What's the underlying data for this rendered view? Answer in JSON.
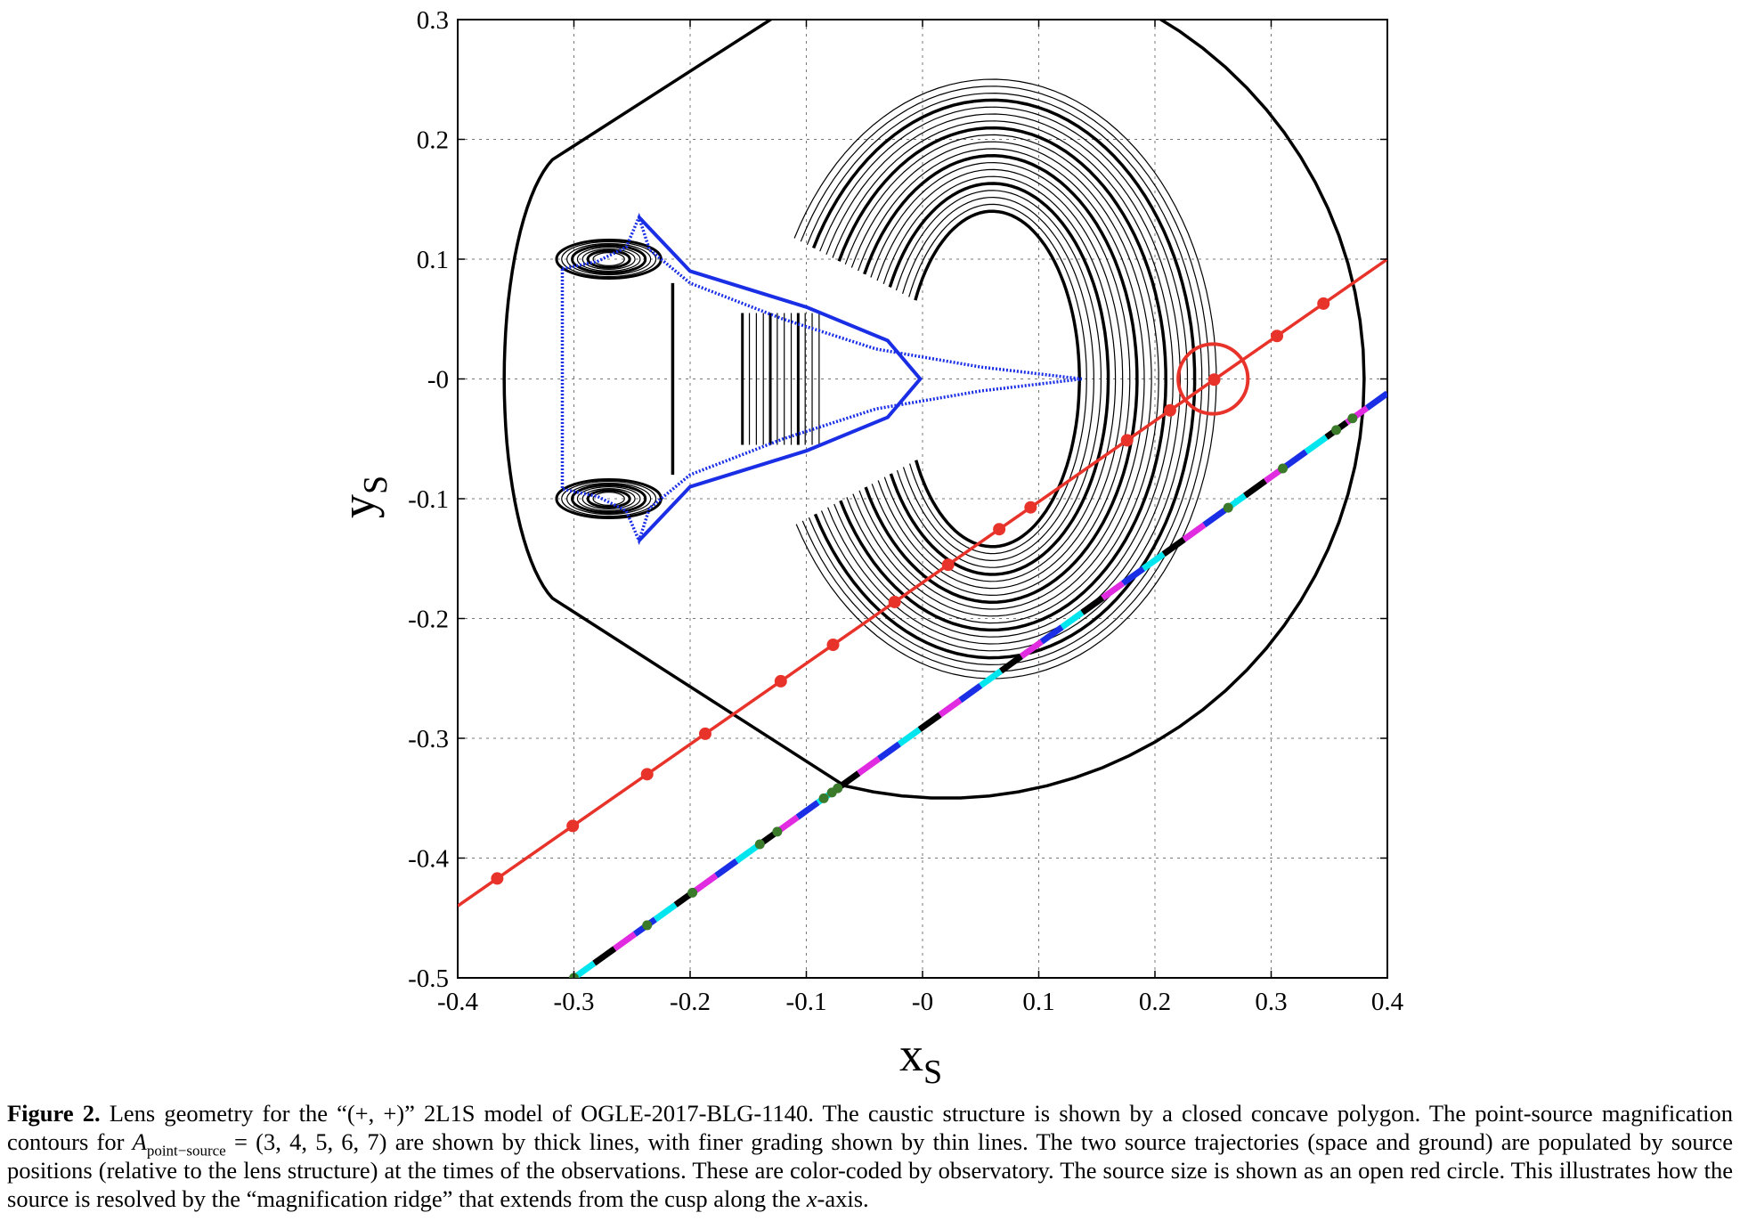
{
  "chart_data": {
    "type": "line",
    "xlabel": "x",
    "xlabel_sub": "S",
    "ylabel": "y",
    "ylabel_sub": "S",
    "xlim": [
      -0.4,
      0.4
    ],
    "ylim": [
      -0.5,
      0.3
    ],
    "grid": true,
    "x_ticks": [
      -0.4,
      -0.3,
      -0.2,
      -0.1,
      0,
      0.1,
      0.2,
      0.3,
      0.4
    ],
    "x_tick_labels": [
      "-0.4",
      "-0.3",
      "-0.2",
      "-0.1",
      "-0",
      "0.1",
      "0.2",
      "0.3",
      "0.4"
    ],
    "y_ticks": [
      0.3,
      0.2,
      0.1,
      0,
      -0.1,
      -0.2,
      -0.3,
      -0.4,
      -0.5
    ],
    "y_tick_labels": [
      "0.3",
      "0.2",
      "0.1",
      "-0",
      "-0.1",
      "-0.2",
      "-0.3",
      "-0.4",
      "-0.5"
    ],
    "caustic": {
      "color": "#1a2ee6",
      "points": [
        [
          -0.31,
          0.092
        ],
        [
          -0.28,
          0.098
        ],
        [
          -0.255,
          0.11
        ],
        [
          -0.244,
          0.135
        ],
        [
          -0.235,
          0.108
        ],
        [
          -0.2,
          0.08
        ],
        [
          -0.12,
          0.05
        ],
        [
          -0.04,
          0.025
        ],
        [
          0.05,
          0.01
        ],
        [
          0.137,
          0
        ],
        [
          0.05,
          -0.01
        ],
        [
          -0.04,
          -0.025
        ],
        [
          -0.12,
          -0.05
        ],
        [
          -0.2,
          -0.08
        ],
        [
          -0.235,
          -0.108
        ],
        [
          -0.244,
          -0.135
        ],
        [
          -0.255,
          -0.11
        ],
        [
          -0.28,
          -0.098
        ],
        [
          -0.31,
          -0.092
        ]
      ],
      "inner_cusp_curve": [
        [
          -0.244,
          0.135
        ],
        [
          -0.2,
          0.09
        ],
        [
          -0.1,
          0.06
        ],
        [
          -0.03,
          0.032
        ],
        [
          -0.002,
          0
        ],
        [
          -0.03,
          -0.032
        ],
        [
          -0.1,
          -0.06
        ],
        [
          -0.2,
          -0.09
        ],
        [
          -0.244,
          -0.135
        ]
      ]
    },
    "trajectory_space": {
      "color": "#e8332a",
      "line": [
        [
          -0.4,
          -0.44
        ],
        [
          0.4,
          0.1
        ]
      ],
      "points_x": [
        -0.366,
        -0.301,
        -0.237,
        -0.187,
        -0.122,
        -0.077,
        -0.024,
        0.022,
        0.066,
        0.093,
        0.176,
        0.213,
        0.251,
        0.305,
        0.345
      ]
    },
    "trajectory_ground": {
      "line": [
        [
          -0.3,
          -0.5
        ],
        [
          0.4,
          -0.012
        ]
      ],
      "colors": [
        "#00e5ee",
        "#1a2ee6",
        "#e02be0",
        "#000000"
      ],
      "points_color": "#3a7a2a",
      "points_x": [
        -0.3,
        -0.237,
        -0.198,
        -0.125,
        -0.14,
        -0.085,
        -0.078,
        -0.073,
        0.263,
        0.31,
        0.356,
        0.37
      ]
    },
    "source_circle": {
      "color": "#e8332a",
      "center": [
        0.25,
        0
      ],
      "radius": 0.03
    },
    "contour_magnifications": [
      3,
      4,
      5,
      6,
      7
    ]
  },
  "caption": {
    "label": "Figure 2.",
    "text_1": " Lens geometry for the “(+, +)” 2L1S model of OGLE-2017-BLG-1140. The caustic structure is shown by a closed concave polygon. The point-source magnification contours for ",
    "symbol": "A",
    "symbol_sub": "point−source",
    "text_2": " = (3, 4, 5, 6, 7) are shown by thick lines, with finer grading shown by thin lines. The two source trajectories (space and ground) are populated by source positions (relative to the lens structure) at the times of the observations. These are color-coded by observatory. The source size is shown as an open red circle. This illustrates how the source is resolved by the “magnification ridge” that extends from the cusp along the ",
    "axis_word": "x",
    "text_3": "-axis."
  }
}
